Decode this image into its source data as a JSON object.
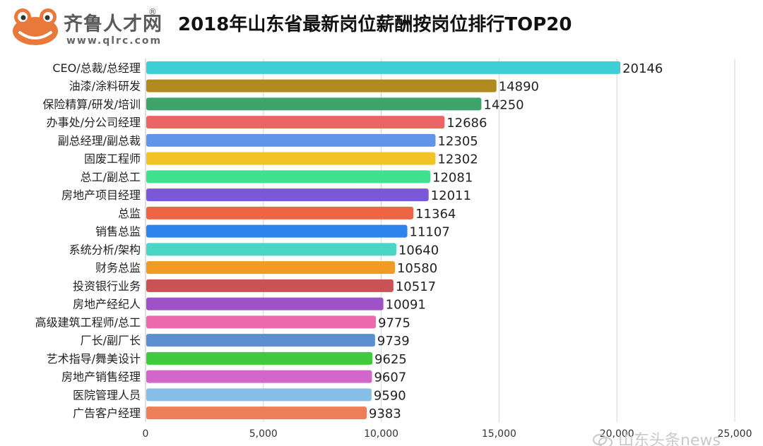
{
  "logo": {
    "name": "齐鲁人才网",
    "reg_mark": "®",
    "url": "www.qlrc.com",
    "icon": "frog-icon"
  },
  "chart_data": {
    "type": "bar",
    "orientation": "horizontal",
    "title": "2018年山东省最新岗位薪酬按岗位排行TOP20",
    "xlabel": "",
    "ylabel": "",
    "xlim": [
      0,
      25000
    ],
    "xticks": [
      "0",
      "5,000",
      "10,000",
      "15,000",
      "20,000",
      "25,000"
    ],
    "xtick_values": [
      0,
      5000,
      10000,
      15000,
      20000,
      25000
    ],
    "grid": "vertical",
    "categories": [
      "CEO/总裁/总经理",
      "油漆/涂料研发",
      "保险精算/研发/培训",
      "办事处/分公司经理",
      "副总经理/副总裁",
      "固废工程师",
      "总工/副总工",
      "房地产项目经理",
      "总监",
      "销售总监",
      "系统分析/架构",
      "财务总监",
      "投资银行业务",
      "房地产经纪人",
      "高级建筑工程师/总工",
      "厂长/副厂长",
      "艺术指导/舞美设计",
      "房地产销售经理",
      "医院管理人员",
      "广告客户经理"
    ],
    "values": [
      20146,
      14890,
      14250,
      12686,
      12305,
      12302,
      12081,
      12011,
      11364,
      11107,
      10640,
      10580,
      10517,
      10091,
      9775,
      9739,
      9625,
      9607,
      9590,
      9383
    ],
    "colors": [
      "#3ecfd4",
      "#b08a1e",
      "#3fa46c",
      "#ec6565",
      "#5f96ea",
      "#f2c428",
      "#3fe08e",
      "#7b58d6",
      "#ee6546",
      "#2d84ea",
      "#4ad5c6",
      "#f29a26",
      "#c95454",
      "#9e52c6",
      "#ee6aae",
      "#5b8fd2",
      "#3fcb3c",
      "#d266c9",
      "#88bfe8",
      "#ee7e56"
    ]
  },
  "watermark": {
    "text": "山东头条news",
    "icon": "wechat-icon"
  }
}
